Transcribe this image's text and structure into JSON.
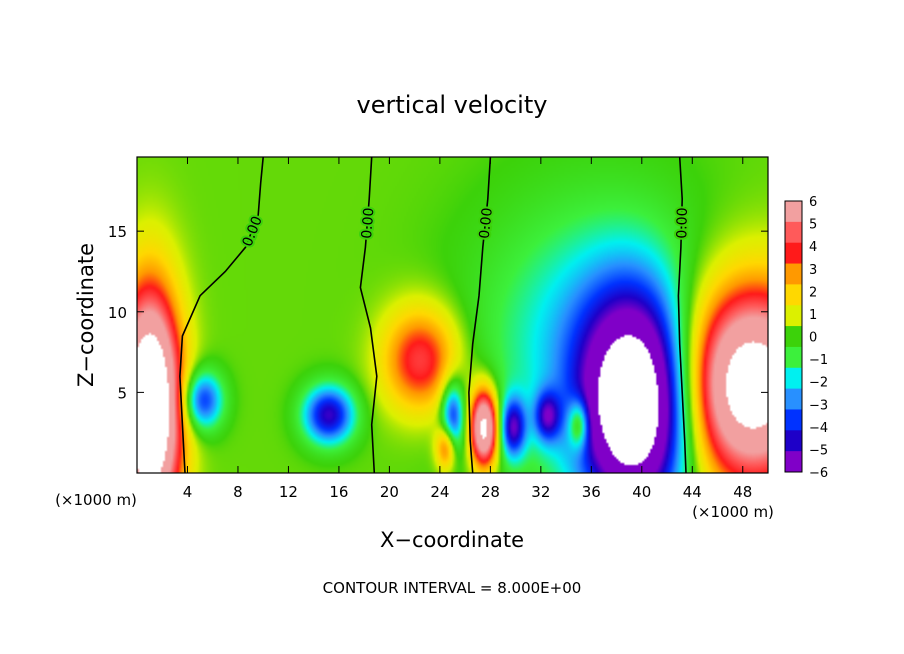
{
  "chart_data": {
    "type": "heatmap",
    "title": "vertical velocity",
    "xlabel": "X−coordinate",
    "ylabel": "Z−coordinate",
    "x_unit_label": "(×1000 m)",
    "y_unit_label": "(×1000 m)",
    "footer": "CONTOUR INTERVAL = 8.000E+00",
    "xlim": [
      0,
      50
    ],
    "ylim": [
      0,
      19.6
    ],
    "x_ticks": [
      4,
      8,
      12,
      16,
      20,
      24,
      28,
      32,
      36,
      40,
      44,
      48
    ],
    "x_tick_labels": [
      "4",
      "8",
      "12",
      "16",
      "20",
      "24",
      "28",
      "32",
      "36",
      "40",
      "44",
      "48"
    ],
    "y_ticks": [
      5,
      10,
      15
    ],
    "y_tick_labels": [
      "5",
      "10",
      "15"
    ],
    "colorbar": {
      "levels": [
        6,
        5,
        4,
        3,
        2,
        1,
        0,
        -1,
        -2,
        -3,
        -4,
        -5,
        -6
      ],
      "labels": [
        "6",
        "5",
        "4",
        "3",
        "2",
        "1",
        "0",
        "−1",
        "−2",
        "−3",
        "−4",
        "−5",
        "−6"
      ],
      "colors": [
        "#f2a0a0",
        "#ff5a5a",
        "#ff1a1a",
        "#ff9900",
        "#ffd800",
        "#dcf000",
        "#3cd20a",
        "#3cf03c",
        "#00f0f0",
        "#2890ff",
        "#0032ff",
        "#1e00c8",
        "#8000c8"
      ]
    },
    "contour_label": "0.00",
    "zero_contours": [
      {
        "label": "0.00",
        "points": [
          [
            10.0,
            19.6
          ],
          [
            9.8,
            18.0
          ],
          [
            9.6,
            16.0
          ],
          [
            8.6,
            14.0
          ],
          [
            7.0,
            12.5
          ],
          [
            5.0,
            11.0
          ],
          [
            3.6,
            8.5
          ],
          [
            3.4,
            6.0
          ],
          [
            3.6,
            3.0
          ],
          [
            3.8,
            0.0
          ]
        ]
      },
      {
        "label": "0.00",
        "points": [
          [
            18.6,
            19.6
          ],
          [
            18.4,
            17.0
          ],
          [
            18.1,
            14.0
          ],
          [
            17.7,
            11.5
          ],
          [
            18.5,
            9.0
          ],
          [
            19.0,
            6.0
          ],
          [
            18.6,
            3.0
          ],
          [
            18.8,
            0.0
          ]
        ]
      },
      {
        "label": "0.00",
        "points": [
          [
            28.0,
            19.6
          ],
          [
            27.8,
            17.0
          ],
          [
            27.4,
            14.0
          ],
          [
            27.1,
            11.0
          ],
          [
            26.6,
            8.0
          ],
          [
            26.3,
            5.0
          ],
          [
            26.4,
            2.0
          ],
          [
            26.6,
            0.0
          ]
        ]
      },
      {
        "label": "0.00",
        "points": [
          [
            43.0,
            19.6
          ],
          [
            43.2,
            17.0
          ],
          [
            43.1,
            14.0
          ],
          [
            42.9,
            11.0
          ],
          [
            43.0,
            8.0
          ],
          [
            43.2,
            5.0
          ],
          [
            43.4,
            2.0
          ],
          [
            43.5,
            0.0
          ]
        ]
      }
    ],
    "features": [
      {
        "sign": "positive",
        "x": 1.0,
        "z": 4.0,
        "rx": 2.4,
        "rz": 7.0,
        "amp": 12
      },
      {
        "sign": "positive",
        "x": 48.5,
        "z": 5.5,
        "rx": 5.5,
        "rz": 6.0,
        "amp": 10
      },
      {
        "sign": "positive",
        "x": 22.5,
        "z": 7.0,
        "rx": 3.0,
        "rz": 3.2,
        "amp": 4.5
      },
      {
        "sign": "positive",
        "x": 27.5,
        "z": 2.8,
        "rx": 1.1,
        "rz": 2.4,
        "amp": 9
      },
      {
        "sign": "positive",
        "x": 35.0,
        "z": 3.0,
        "rx": 0.8,
        "rz": 1.5,
        "amp": 4
      },
      {
        "sign": "positive",
        "x": 24.5,
        "z": 1.6,
        "rx": 0.8,
        "rz": 1.4,
        "amp": 4
      },
      {
        "sign": "negative",
        "x": 39.5,
        "z": 4.0,
        "rx": 4.2,
        "rz": 6.5,
        "amp": 10
      },
      {
        "sign": "negative",
        "x": 36.5,
        "z": 8.0,
        "rx": 9.0,
        "rz": 8.5,
        "amp": 2.8
      },
      {
        "sign": "negative",
        "x": 15.2,
        "z": 3.6,
        "rx": 2.0,
        "rz": 1.8,
        "amp": 5.5
      },
      {
        "sign": "negative",
        "x": 5.2,
        "z": 4.5,
        "rx": 1.6,
        "rz": 1.8,
        "amp": 4.5
      },
      {
        "sign": "negative",
        "x": 25.0,
        "z": 3.5,
        "rx": 0.9,
        "rz": 2.2,
        "amp": 4.5
      },
      {
        "sign": "negative",
        "x": 29.8,
        "z": 2.8,
        "rx": 1.0,
        "rz": 1.8,
        "amp": 5
      },
      {
        "sign": "negative",
        "x": 32.5,
        "z": 3.5,
        "rx": 1.0,
        "rz": 1.5,
        "amp": 4
      }
    ]
  }
}
